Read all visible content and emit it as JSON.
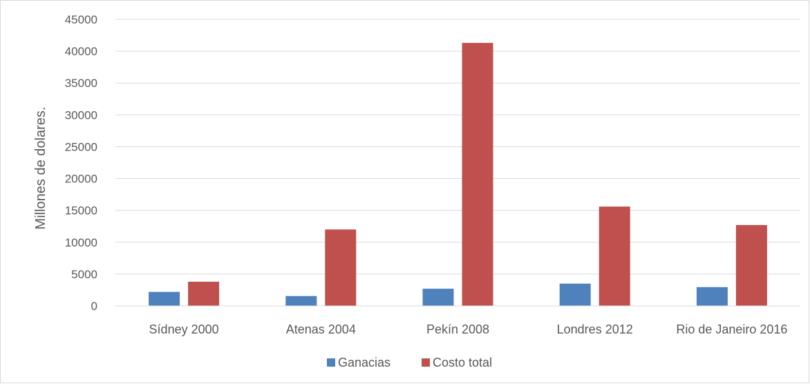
{
  "chart_data": {
    "type": "bar",
    "title": "",
    "xlabel": "",
    "ylabel": "Millones de dolares.",
    "ylim": [
      0,
      45000
    ],
    "yticks": [
      0,
      5000,
      10000,
      15000,
      20000,
      25000,
      30000,
      35000,
      40000,
      45000
    ],
    "grid": true,
    "legend_position": "bottom",
    "categories": [
      "Sídney 2000",
      "Atenas 2004",
      "Pekín 2008",
      "Londres 2012",
      "Rio de Janeiro 2016"
    ],
    "series": [
      {
        "name": "Ganacias",
        "color": "#4f81bd",
        "values": [
          2200,
          1550,
          2700,
          3500,
          2950
        ]
      },
      {
        "name": "Costo total",
        "color": "#c0504d",
        "values": [
          3800,
          12000,
          41300,
          15600,
          12700
        ]
      }
    ]
  }
}
